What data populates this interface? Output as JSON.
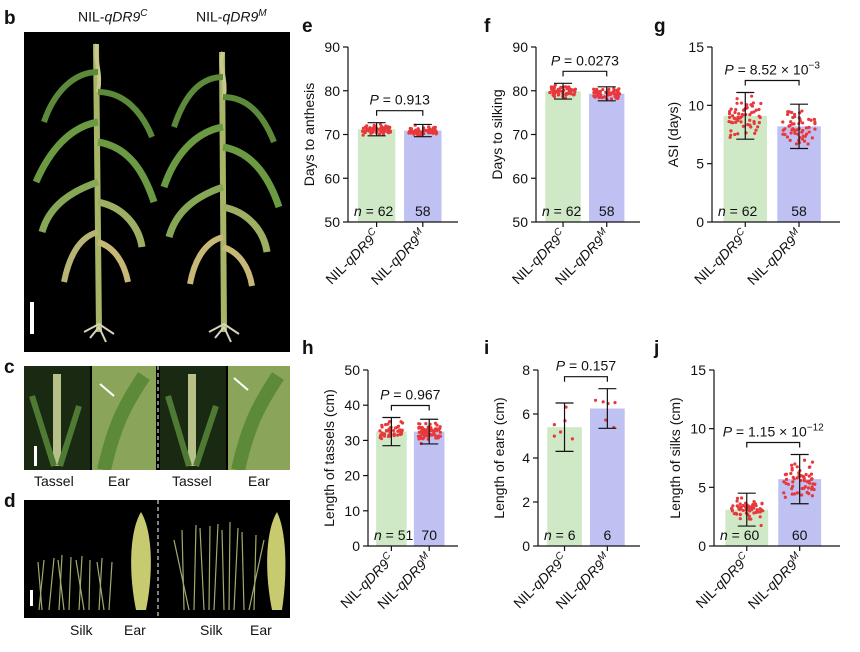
{
  "figure": {
    "panel_b": {
      "label": "b",
      "headers": [
        {
          "prefix": "NIL-",
          "gene": "qDR9",
          "sup": "C"
        },
        {
          "prefix": "NIL-",
          "gene": "qDR9",
          "sup": "M"
        }
      ]
    },
    "panel_c": {
      "label": "c",
      "captions": [
        "Tassel",
        "Ear",
        "Tassel",
        "Ear"
      ]
    },
    "panel_d": {
      "label": "d",
      "captions": [
        "Silk",
        "Ear",
        "Silk",
        "Ear"
      ]
    },
    "colors": {
      "green_bar": "#cfe9c7",
      "blue_bar": "#bfc1f2",
      "dots": "#e8383b",
      "photo_bg": "#000000"
    },
    "chart_labels": {
      "n_prefix": "n",
      "n_eq": " = ",
      "p_prefix": "P",
      "x_prefix": "NIL-",
      "x_gene": "qDR9",
      "x_sups": [
        "C",
        "M"
      ]
    }
  },
  "chart_data": [
    {
      "id": "e",
      "type": "bar",
      "title": "",
      "ylabel": "Days to anthesis",
      "ylim": [
        50,
        90
      ],
      "yticks": [
        50,
        60,
        70,
        80,
        90
      ],
      "categories": [
        "NIL-qDR9C",
        "NIL-qDR9M"
      ],
      "values": [
        71.2,
        70.9
      ],
      "errors": [
        1.5,
        1.4
      ],
      "n": [
        "62",
        "58"
      ],
      "p_text": "P = 0.913",
      "p_value": "0.913",
      "p_exp": ""
    },
    {
      "id": "f",
      "type": "bar",
      "title": "",
      "ylabel": "Days to silking",
      "ylim": [
        50,
        90
      ],
      "yticks": [
        50,
        60,
        70,
        80,
        90
      ],
      "categories": [
        "NIL-qDR9C",
        "NIL-qDR9M"
      ],
      "values": [
        79.9,
        79.3
      ],
      "errors": [
        1.8,
        1.6
      ],
      "n": [
        "62",
        "58"
      ],
      "p_text": "P = 0.0273",
      "p_value": "0.0273",
      "p_exp": ""
    },
    {
      "id": "g",
      "type": "bar",
      "title": "",
      "ylabel": "ASI (days)",
      "ylim": [
        0,
        15
      ],
      "yticks": [
        0,
        5,
        10,
        15
      ],
      "categories": [
        "NIL-qDR9C",
        "NIL-qDR9M"
      ],
      "values": [
        9.1,
        8.2
      ],
      "errors": [
        2.0,
        1.9
      ],
      "n": [
        "62",
        "58"
      ],
      "p_text": "P = 8.52 × 10-3",
      "p_value": "8.52 × 10",
      "p_exp": "−3"
    },
    {
      "id": "h",
      "type": "bar",
      "title": "",
      "ylabel": "Length of tassels (cm)",
      "ylim": [
        0,
        50
      ],
      "yticks": [
        0,
        10,
        20,
        30,
        40,
        50
      ],
      "categories": [
        "NIL-qDR9C",
        "NIL-qDR9M"
      ],
      "values": [
        32.5,
        32.5
      ],
      "errors": [
        4.0,
        3.5
      ],
      "n": [
        "51",
        "70"
      ],
      "p_text": "P = 0.967",
      "p_value": "0.967",
      "p_exp": ""
    },
    {
      "id": "i",
      "type": "bar",
      "title": "",
      "ylabel": "Length of ears (cm)",
      "ylim": [
        0,
        8
      ],
      "yticks": [
        0,
        2,
        4,
        6,
        8
      ],
      "categories": [
        "NIL-qDR9C",
        "NIL-qDR9M"
      ],
      "values": [
        5.4,
        6.25
      ],
      "errors": [
        1.1,
        0.9
      ],
      "n": [
        "6",
        "6"
      ],
      "p_text": "P = 0.157",
      "p_value": "0.157",
      "p_exp": ""
    },
    {
      "id": "j",
      "type": "bar",
      "title": "",
      "ylabel": "Length of silks (cm)",
      "ylim": [
        0,
        15
      ],
      "yticks": [
        0,
        5,
        10,
        15
      ],
      "categories": [
        "NIL-qDR9C",
        "NIL-qDR9M"
      ],
      "values": [
        3.1,
        5.7
      ],
      "errors": [
        1.4,
        2.1
      ],
      "n": [
        "60",
        "60"
      ],
      "p_text": "P = 1.15 × 10-12",
      "p_value": "1.15 × 10",
      "p_exp": "−12"
    }
  ]
}
